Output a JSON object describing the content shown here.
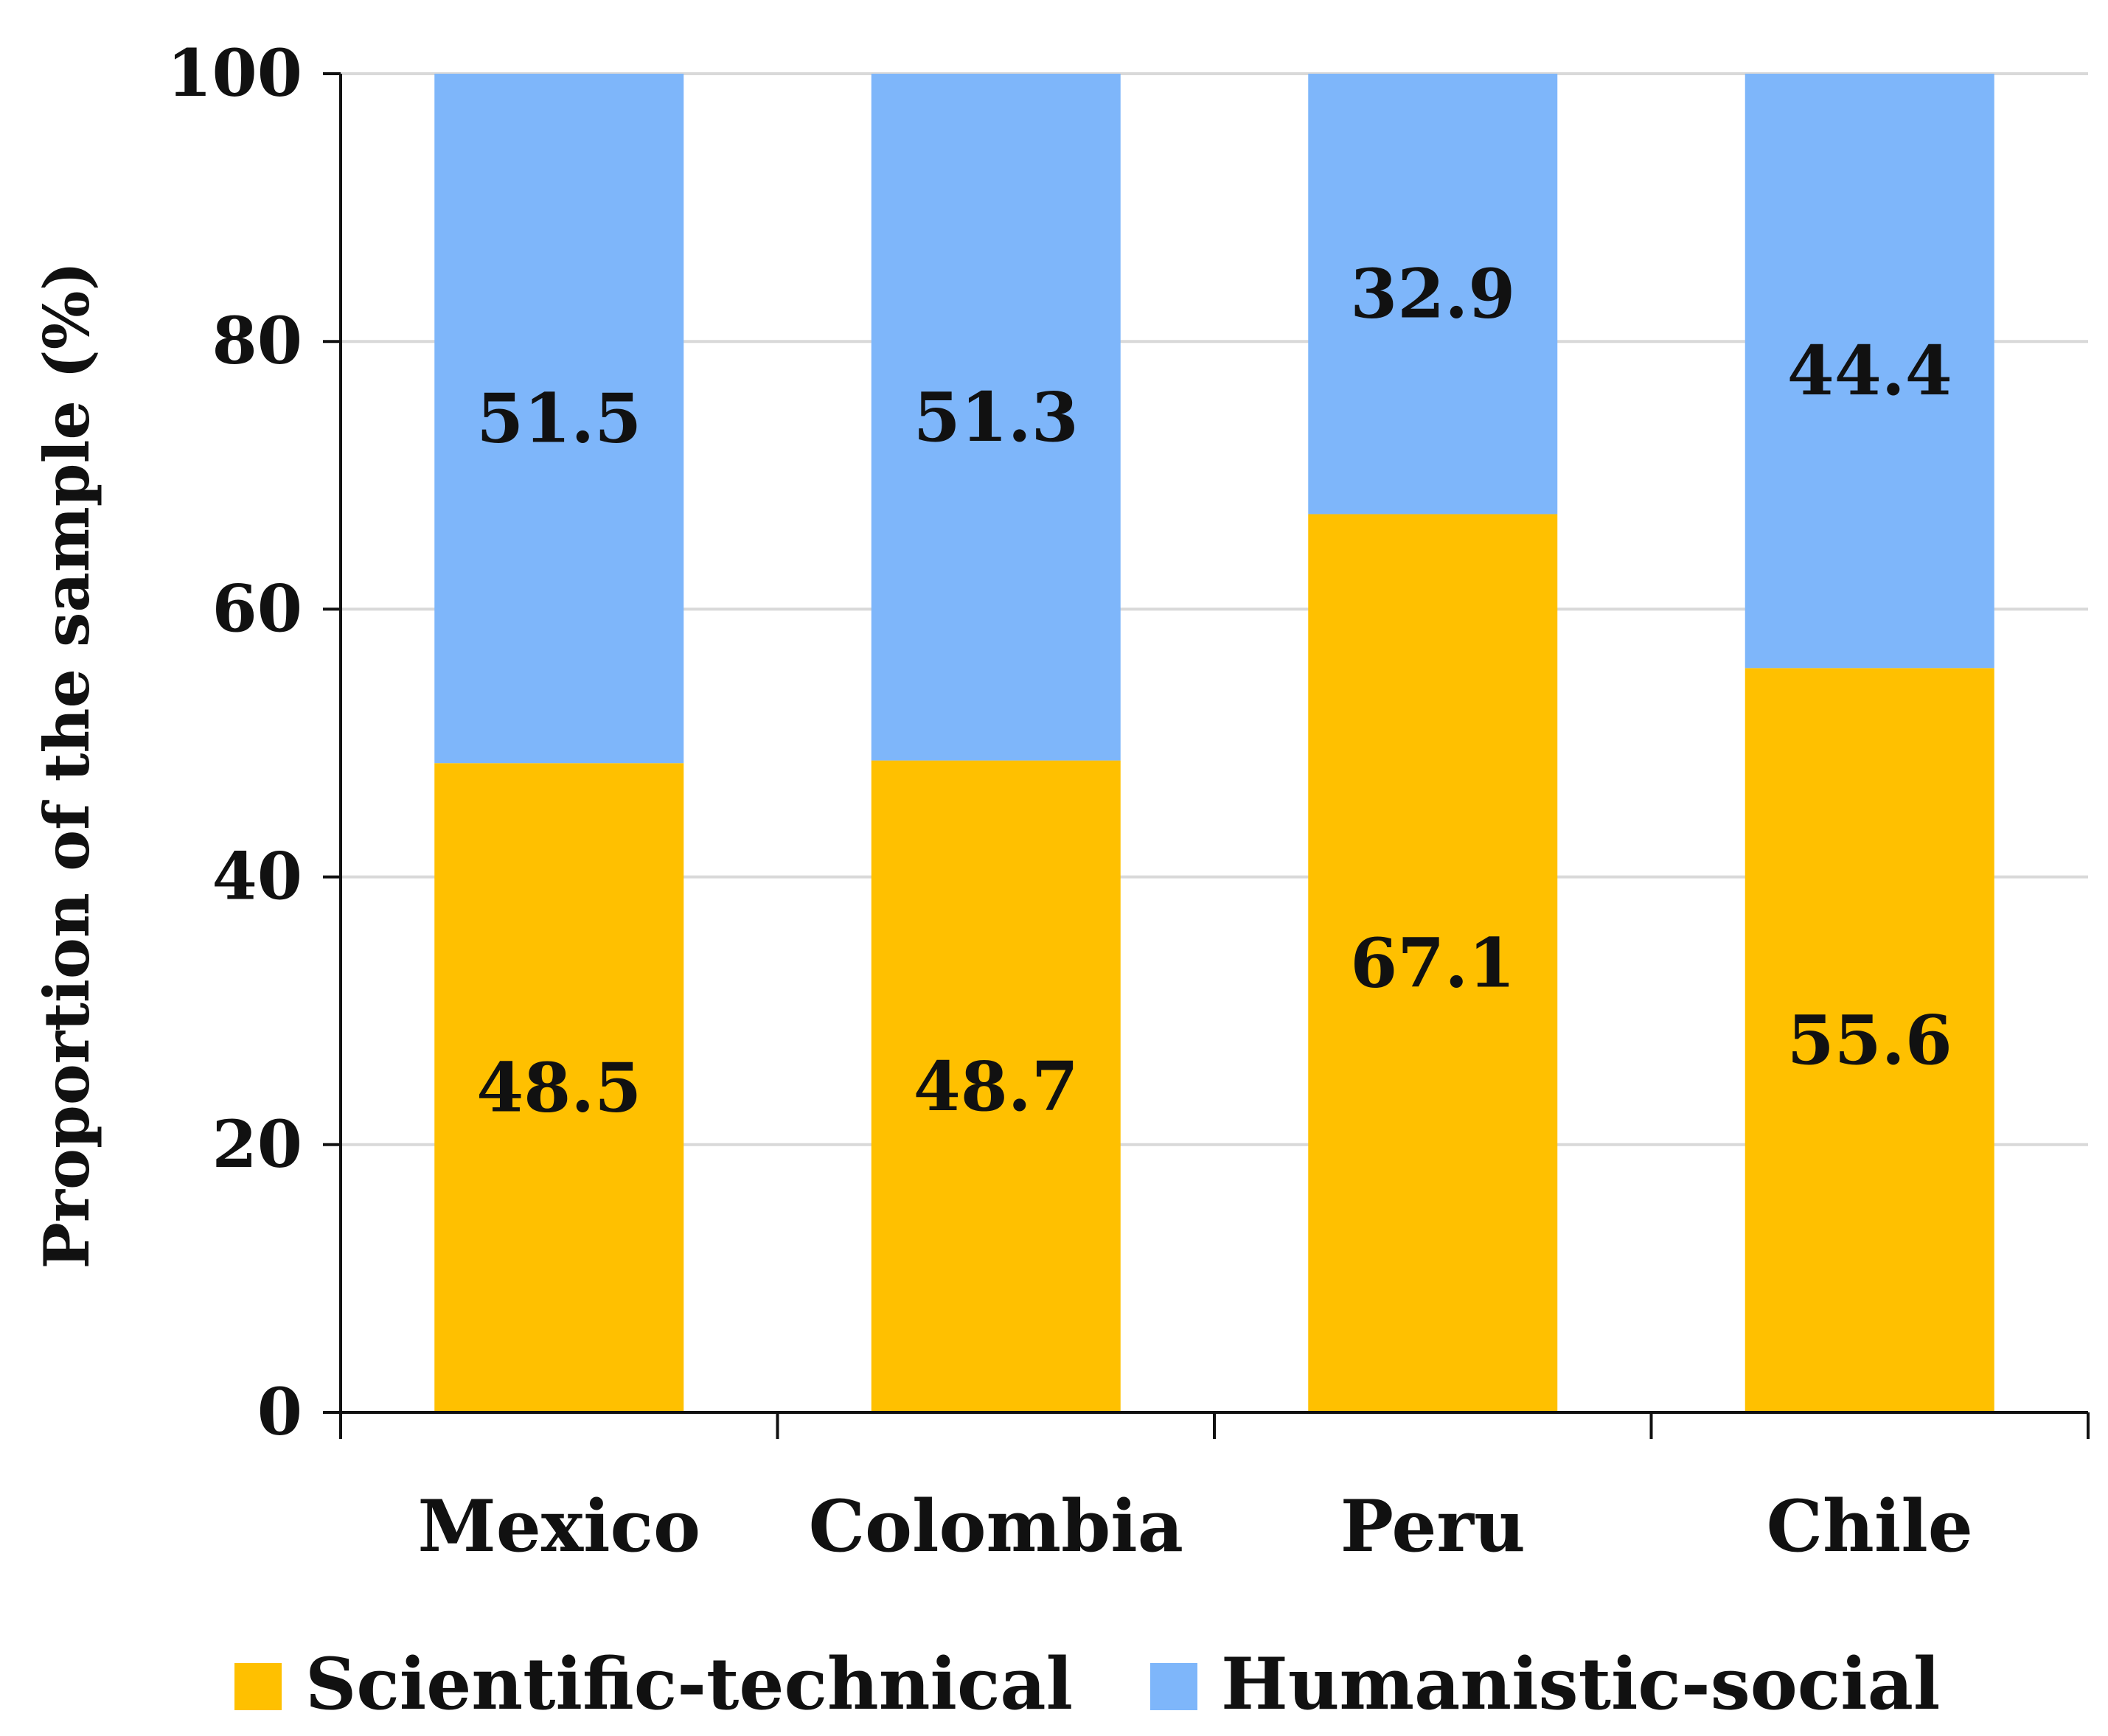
{
  "chart_data": {
    "type": "bar",
    "stacked": true,
    "categories": [
      "Mexico",
      "Colombia",
      "Peru",
      "Chile"
    ],
    "series": [
      {
        "name": "Scientific-technical",
        "color": "#FFC000",
        "values": [
          48.5,
          48.7,
          67.1,
          55.6
        ]
      },
      {
        "name": "Humanistic-social",
        "color": "#7EB6FA",
        "values": [
          51.5,
          51.3,
          32.9,
          44.4
        ]
      }
    ],
    "title": "",
    "xlabel": "",
    "ylabel": "Proportion of the sample (%)",
    "ylim": [
      0,
      100
    ],
    "yticks": [
      0,
      20,
      40,
      60,
      80,
      100
    ],
    "grid": true,
    "legend": "bottom"
  }
}
